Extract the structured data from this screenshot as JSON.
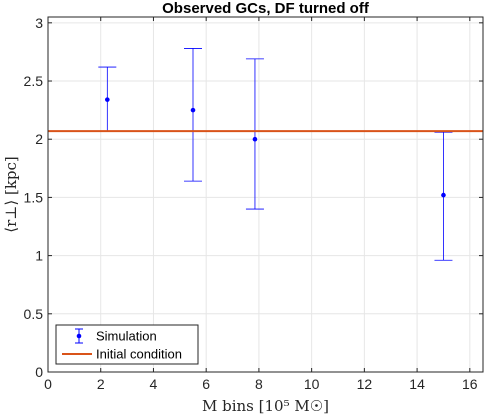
{
  "chart_data": {
    "type": "scatter",
    "title": "Observed GCs, DF turned off",
    "xlabel": "M bins [10⁵ M☉]",
    "ylabel": "⟨r⊥⟩ [kpc]",
    "xlim": [
      0,
      16.5
    ],
    "ylim": [
      0,
      3.05
    ],
    "xticks": [
      0,
      2,
      4,
      6,
      8,
      10,
      12,
      14,
      16
    ],
    "yticks": [
      0,
      0.5,
      1,
      1.5,
      2,
      2.5,
      3
    ],
    "xtick_labels": [
      "0",
      "2",
      "4",
      "6",
      "8",
      "10",
      "12",
      "14",
      "16"
    ],
    "ytick_labels": [
      "0",
      "0.5",
      "1",
      "1.5",
      "2",
      "2.5",
      "3"
    ],
    "grid": true,
    "legend_position": "bottom-left",
    "series": [
      {
        "name": "Simulation",
        "kind": "errorbar",
        "color": "#0000ff",
        "x": [
          2.25,
          5.5,
          7.85,
          15.0
        ],
        "y": [
          2.34,
          2.25,
          2.0,
          1.52
        ],
        "lower": [
          2.07,
          1.64,
          1.4,
          0.96
        ],
        "upper": [
          2.62,
          2.78,
          2.69,
          2.06
        ]
      },
      {
        "name": "Initial condition",
        "kind": "hline",
        "color": "#d95319",
        "y": 2.07
      }
    ]
  }
}
